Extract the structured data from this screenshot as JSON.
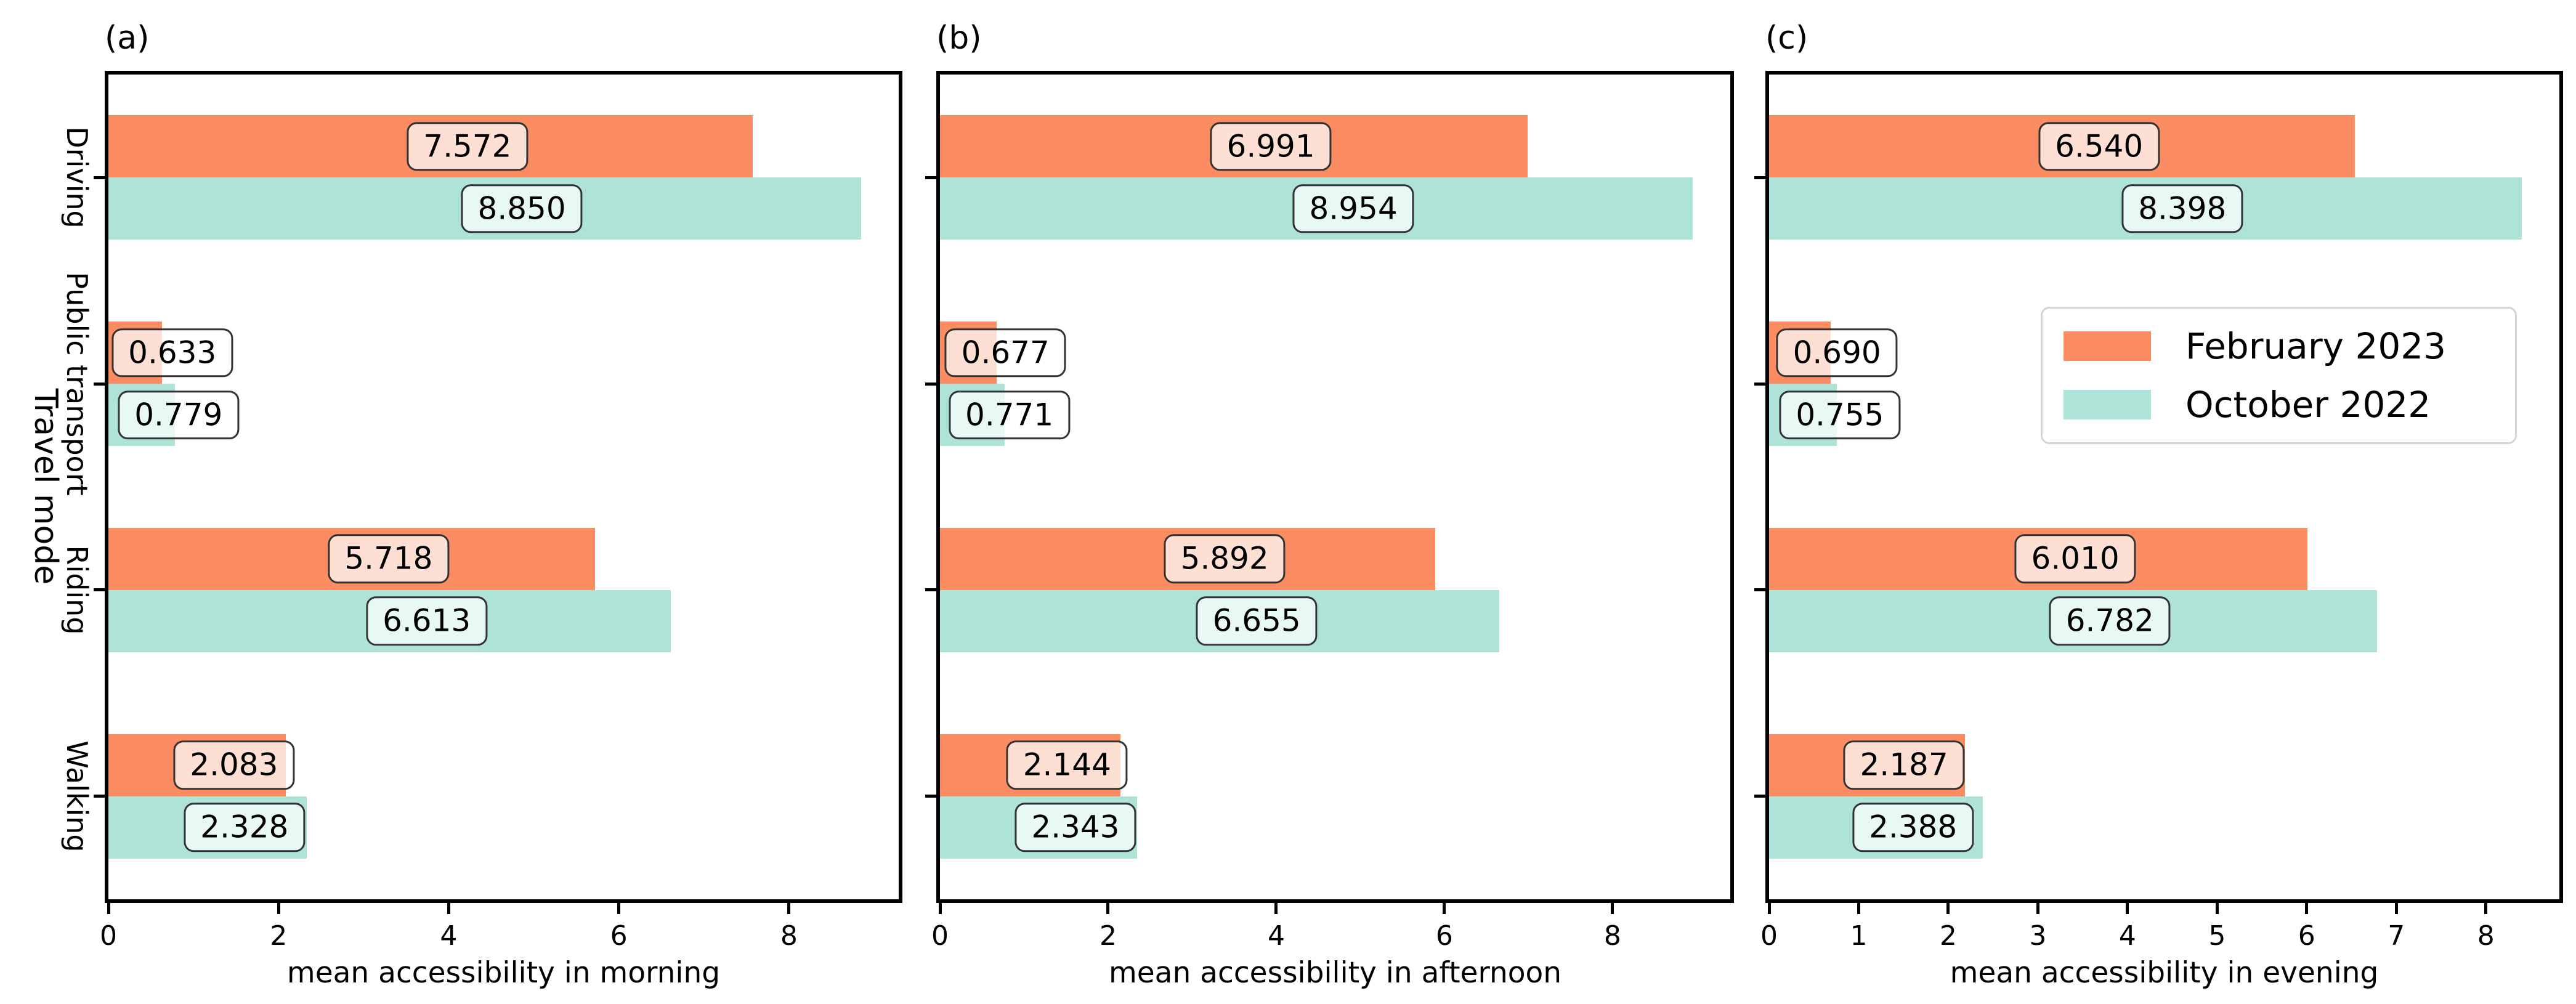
{
  "figure": {
    "ylabel": "Travel mode",
    "background": "#ffffff",
    "spine_color": "#000000",
    "value_label_fill": "rgba(255,255,255,0.72)",
    "value_label_border": "#333333"
  },
  "legend": {
    "location": "upper right of panel (c)",
    "border_color": "#d4d4d4",
    "entries": [
      {
        "label": "February 2023",
        "color": "#FC8D62"
      },
      {
        "label": "October 2022",
        "color": "#AEE4D7"
      }
    ]
  },
  "chart_data": [
    {
      "type": "bar",
      "orientation": "horizontal",
      "panel_label": "(a)",
      "xlabel": "mean accessibility in morning",
      "categories": [
        "Driving",
        "Public transport",
        "Riding",
        "Walking"
      ],
      "series": [
        {
          "name": "February 2023",
          "color": "#FC8D62",
          "values": [
            7.572,
            0.633,
            5.718,
            2.083
          ]
        },
        {
          "name": "October 2022",
          "color": "#AEE4D7",
          "values": [
            8.85,
            0.779,
            6.613,
            2.328
          ]
        }
      ],
      "xlim": [
        0,
        9.29
      ],
      "xticks": [
        0,
        2,
        4,
        6,
        8
      ],
      "value_labels": true,
      "grid": false,
      "show_category_labels": true,
      "show_legend": false
    },
    {
      "type": "bar",
      "orientation": "horizontal",
      "panel_label": "(b)",
      "xlabel": "mean accessibility in afternoon",
      "categories": [
        "Driving",
        "Public transport",
        "Riding",
        "Walking"
      ],
      "series": [
        {
          "name": "February 2023",
          "color": "#FC8D62",
          "values": [
            6.991,
            0.677,
            5.892,
            2.144
          ]
        },
        {
          "name": "October 2022",
          "color": "#AEE4D7",
          "values": [
            8.954,
            0.771,
            6.655,
            2.343
          ]
        }
      ],
      "xlim": [
        0,
        9.4
      ],
      "xticks": [
        0,
        2,
        4,
        6,
        8
      ],
      "value_labels": true,
      "grid": false,
      "show_category_labels": false,
      "show_legend": false
    },
    {
      "type": "bar",
      "orientation": "horizontal",
      "panel_label": "(c)",
      "xlabel": "mean accessibility in evening",
      "categories": [
        "Driving",
        "Public transport",
        "Riding",
        "Walking"
      ],
      "series": [
        {
          "name": "February 2023",
          "color": "#FC8D62",
          "values": [
            6.54,
            0.69,
            6.01,
            2.187
          ]
        },
        {
          "name": "October 2022",
          "color": "#AEE4D7",
          "values": [
            8.398,
            0.755,
            6.782,
            2.388
          ]
        }
      ],
      "xlim": [
        0,
        8.82
      ],
      "xticks": [
        0,
        1,
        2,
        3,
        4,
        5,
        6,
        7,
        8
      ],
      "value_labels": true,
      "grid": false,
      "show_category_labels": false,
      "show_legend": true
    }
  ]
}
